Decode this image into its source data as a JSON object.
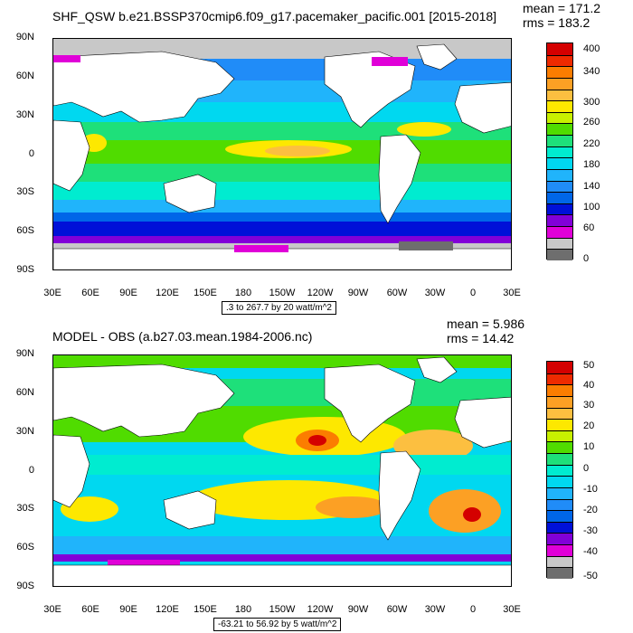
{
  "top": {
    "title": "SHF_QSW b.e21.BSSP370cmip6.f09_g17.pacemaker_pacific.001 [2015-2018]",
    "mean": "mean = 171.2",
    "rms": "rms = 183.2",
    "range_label": ".3 to 267.7 by 20 watt/m^2",
    "lat_labels": [
      "90N",
      "60N",
      "30N",
      "0",
      "30S",
      "60S",
      "90S"
    ],
    "lon_labels": [
      "30E",
      "60E",
      "90E",
      "120E",
      "150E",
      "180",
      "150W",
      "120W",
      "90W",
      "60W",
      "30W",
      "0",
      "30E"
    ],
    "colorbar_labels": [
      "400",
      "340",
      "300",
      "260",
      "220",
      "180",
      "140",
      "100",
      "60",
      "0"
    ],
    "colors": [
      "#d40000",
      "#ee2a00",
      "#fb7d00",
      "#fca024",
      "#fcbf40",
      "#fde800",
      "#c8f000",
      "#50dc00",
      "#1ee07a",
      "#00ecd0",
      "#00d8f0",
      "#20b4fb",
      "#208cf8",
      "#0066e8",
      "#0010d8",
      "#8200d8",
      "#e000d8",
      "#c8c8c8",
      "#6e6e6e"
    ]
  },
  "bottom": {
    "title": "MODEL - OBS (a.b27.03.mean.1984-2006.nc)",
    "mean": "mean = 5.986",
    "rms": "rms = 14.42",
    "range_label": "-63.21 to 56.92 by 5 watt/m^2",
    "lat_labels": [
      "90N",
      "60N",
      "30N",
      "0",
      "30S",
      "60S",
      "90S"
    ],
    "lon_labels": [
      "30E",
      "60E",
      "90E",
      "120E",
      "150E",
      "180",
      "150W",
      "120W",
      "90W",
      "60W",
      "30W",
      "0",
      "30E"
    ],
    "colorbar_labels": [
      "50",
      "40",
      "30",
      "20",
      "10",
      "0",
      "-10",
      "-20",
      "-30",
      "-40",
      "-50"
    ],
    "colors": [
      "#d40000",
      "#ee2a00",
      "#fb7d00",
      "#fca024",
      "#fcbf40",
      "#fde800",
      "#c8f000",
      "#50dc00",
      "#1ee07a",
      "#00ecd0",
      "#00d8f0",
      "#20b4fb",
      "#208cf8",
      "#0066e8",
      "#0010d8",
      "#8200d8",
      "#e000d8",
      "#c8c8c8",
      "#6e6e6e"
    ]
  }
}
